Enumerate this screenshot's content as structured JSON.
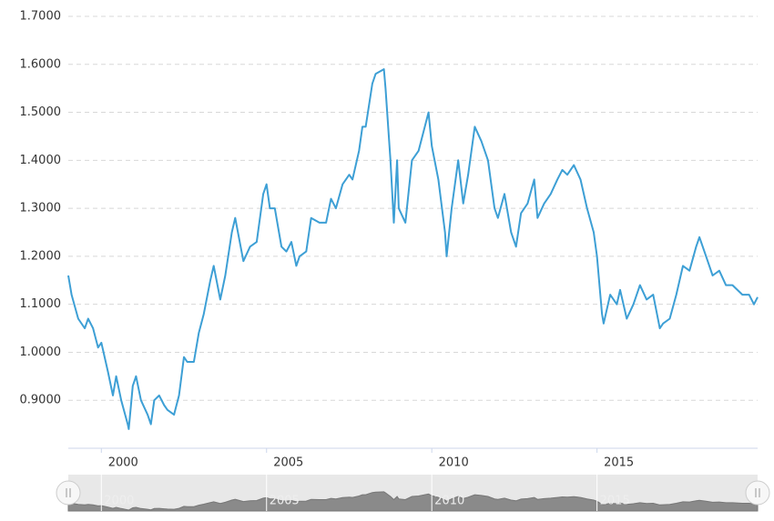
{
  "chart_data": {
    "type": "line",
    "x": [
      1999.0,
      1999.1,
      1999.3,
      1999.5,
      1999.6,
      1999.75,
      1999.9,
      2000.0,
      2000.2,
      2000.35,
      2000.45,
      2000.6,
      2000.8,
      2000.83,
      2000.95,
      2001.05,
      2001.2,
      2001.4,
      2001.5,
      2001.6,
      2001.75,
      2001.9,
      2002.0,
      2002.2,
      2002.35,
      2002.5,
      2002.6,
      2002.8,
      2002.95,
      2003.1,
      2003.3,
      2003.4,
      2003.6,
      2003.75,
      2003.95,
      2004.05,
      2004.3,
      2004.5,
      2004.7,
      2004.9,
      2005.0,
      2005.1,
      2005.25,
      2005.45,
      2005.6,
      2005.75,
      2005.9,
      2006.0,
      2006.2,
      2006.35,
      2006.6,
      2006.8,
      2006.95,
      2007.1,
      2007.3,
      2007.5,
      2007.6,
      2007.8,
      2007.9,
      2008.0,
      2008.2,
      2008.3,
      2008.55,
      2008.6,
      2008.75,
      2008.85,
      2008.95,
      2009.0,
      2009.2,
      2009.4,
      2009.6,
      2009.9,
      2010.0,
      2010.2,
      2010.4,
      2010.45,
      2010.6,
      2010.8,
      2010.95,
      2011.1,
      2011.3,
      2011.5,
      2011.7,
      2011.9,
      2012.0,
      2012.2,
      2012.4,
      2012.55,
      2012.7,
      2012.9,
      2013.1,
      2013.2,
      2013.4,
      2013.6,
      2013.8,
      2013.95,
      2014.1,
      2014.3,
      2014.5,
      2014.7,
      2014.9,
      2015.0,
      2015.15,
      2015.2,
      2015.4,
      2015.6,
      2015.7,
      2015.9,
      2016.1,
      2016.3,
      2016.5,
      2016.7,
      2016.9,
      2017.0,
      2017.2,
      2017.4,
      2017.6,
      2017.8,
      2018.0,
      2018.1,
      2018.3,
      2018.5,
      2018.7,
      2018.9,
      2019.1,
      2019.4,
      2019.6,
      2019.75,
      2019.86
    ],
    "series": [
      {
        "color": "#3d9fd5",
        "values": [
          1.16,
          1.12,
          1.07,
          1.05,
          1.07,
          1.05,
          1.01,
          1.02,
          0.96,
          0.91,
          0.95,
          0.9,
          0.85,
          0.84,
          0.93,
          0.95,
          0.9,
          0.87,
          0.85,
          0.9,
          0.91,
          0.89,
          0.88,
          0.87,
          0.91,
          0.99,
          0.98,
          0.98,
          1.04,
          1.08,
          1.15,
          1.18,
          1.11,
          1.16,
          1.25,
          1.28,
          1.19,
          1.22,
          1.23,
          1.33,
          1.35,
          1.3,
          1.3,
          1.22,
          1.21,
          1.23,
          1.18,
          1.2,
          1.21,
          1.28,
          1.27,
          1.27,
          1.32,
          1.3,
          1.35,
          1.37,
          1.36,
          1.42,
          1.47,
          1.47,
          1.56,
          1.58,
          1.59,
          1.55,
          1.4,
          1.27,
          1.4,
          1.3,
          1.27,
          1.4,
          1.42,
          1.5,
          1.43,
          1.36,
          1.25,
          1.2,
          1.3,
          1.4,
          1.31,
          1.37,
          1.47,
          1.44,
          1.4,
          1.3,
          1.28,
          1.33,
          1.25,
          1.22,
          1.29,
          1.31,
          1.36,
          1.28,
          1.31,
          1.33,
          1.36,
          1.38,
          1.37,
          1.39,
          1.36,
          1.3,
          1.25,
          1.2,
          1.08,
          1.06,
          1.12,
          1.1,
          1.13,
          1.07,
          1.1,
          1.14,
          1.11,
          1.12,
          1.05,
          1.06,
          1.07,
          1.12,
          1.18,
          1.17,
          1.22,
          1.24,
          1.2,
          1.16,
          1.17,
          1.14,
          1.14,
          1.12,
          1.12,
          1.1,
          1.115
        ]
      }
    ],
    "xlim": [
      1999.0,
      2019.86
    ],
    "xticks": [
      2000,
      2005,
      2010,
      2015
    ],
    "ylim": [
      0.8,
      1.7
    ],
    "yticks": [
      {
        "value": 0.9,
        "label": "0.9000"
      },
      {
        "value": 1.0,
        "label": "1.0000"
      },
      {
        "value": 1.1,
        "label": "1.1000"
      },
      {
        "value": 1.2,
        "label": "1.2000"
      },
      {
        "value": 1.3,
        "label": "1.3000"
      },
      {
        "value": 1.4,
        "label": "1.4000"
      },
      {
        "value": 1.5,
        "label": "1.5000"
      },
      {
        "value": 1.6,
        "label": "1.6000"
      },
      {
        "value": 1.7,
        "label": "1.7000"
      }
    ],
    "grid": true
  }
}
